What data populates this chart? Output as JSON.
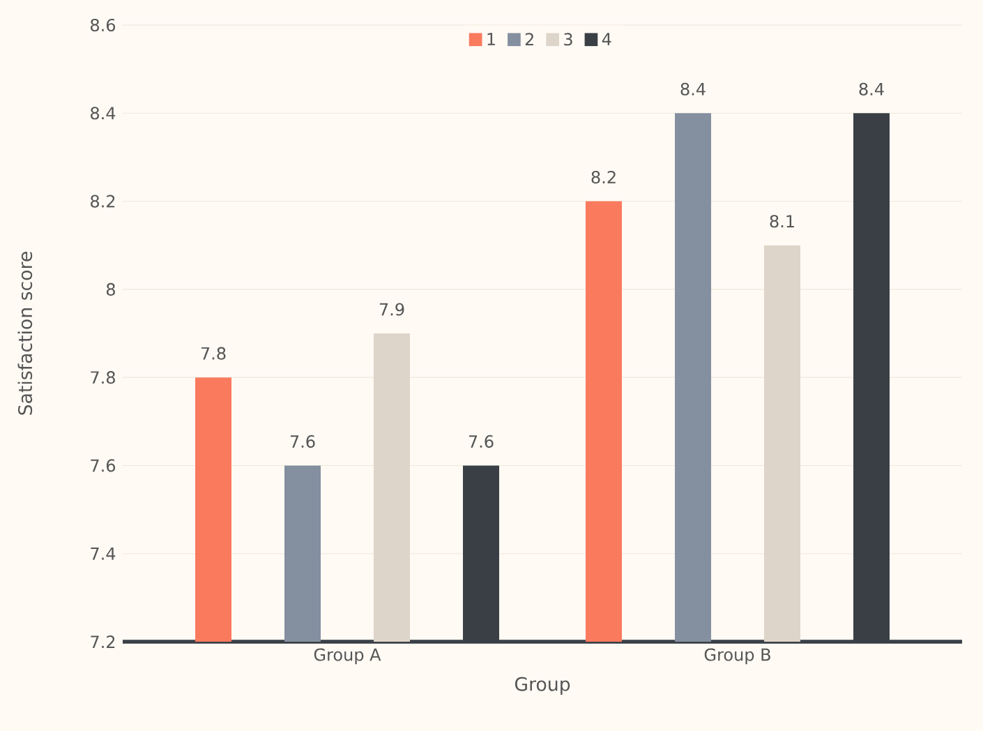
{
  "chart_data": {
    "type": "bar",
    "xlabel": "Group",
    "ylabel": "Satisfaction score",
    "categories": [
      "Group A",
      "Group B"
    ],
    "series": [
      {
        "name": "1",
        "color": "#fa7a5e",
        "values": [
          7.8,
          8.2
        ]
      },
      {
        "name": "2",
        "color": "#848fa0",
        "values": [
          7.6,
          8.4
        ]
      },
      {
        "name": "3",
        "color": "#ddd5c9",
        "values": [
          7.9,
          8.1
        ]
      },
      {
        "name": "4",
        "color": "#3a3f46",
        "values": [
          7.6,
          8.4
        ]
      }
    ],
    "ylim": [
      7.2,
      8.6
    ],
    "yticks": [
      7.2,
      7.4,
      7.6,
      7.8,
      8,
      8.2,
      8.4,
      8.6
    ],
    "grid": "y",
    "legend": "top",
    "data_labels": true
  }
}
